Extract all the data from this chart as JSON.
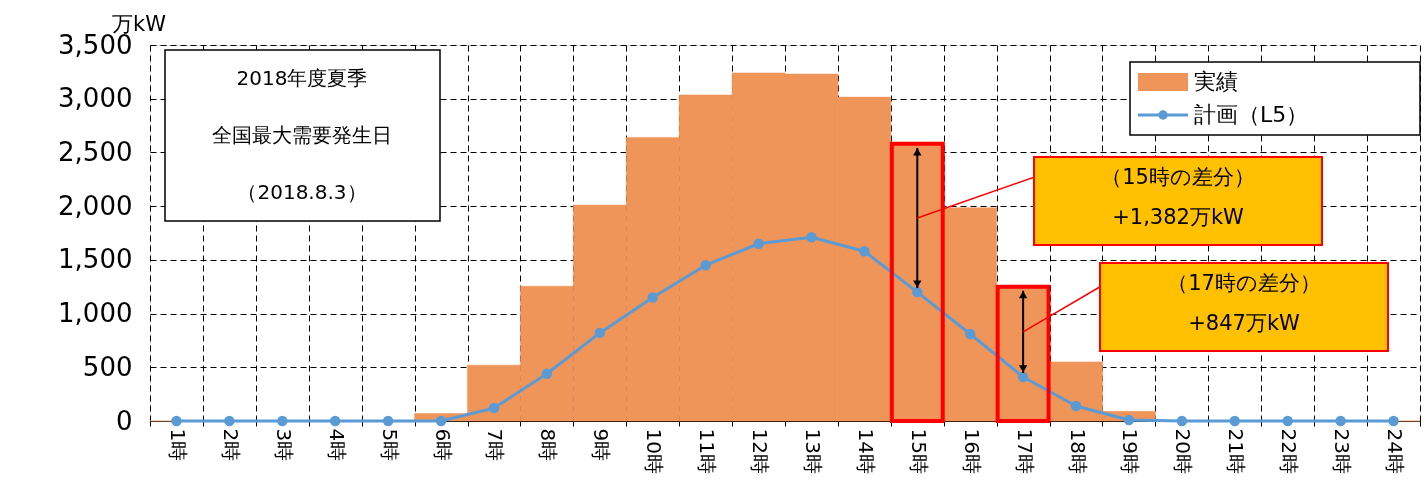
{
  "chart_data": {
    "type": "bar",
    "ylabel": "万kW",
    "categories": [
      "1時",
      "2時",
      "3時",
      "4時",
      "5時",
      "6時",
      "7時",
      "8時",
      "9時",
      "10時",
      "11時",
      "12時",
      "13時",
      "14時",
      "15時",
      "16時",
      "17時",
      "18時",
      "19時",
      "20時",
      "21時",
      "22時",
      "23時",
      "24時"
    ],
    "series": [
      {
        "name": "実績",
        "color": "#f0955a",
        "values": [
          0,
          0,
          0,
          0,
          0,
          70,
          520,
          1255,
          2010,
          2640,
          3035,
          3240,
          3230,
          3015,
          2580,
          1985,
          1250,
          550,
          90,
          0,
          0,
          0,
          0,
          0
        ]
      },
      {
        "name": "計画（L5）",
        "type": "line",
        "color": "#5b9bd5",
        "values": [
          0,
          0,
          0,
          0,
          0,
          0,
          120,
          440,
          820,
          1150,
          1450,
          1650,
          1710,
          1580,
          1200,
          810,
          410,
          140,
          10,
          0,
          0,
          0,
          0,
          0
        ]
      }
    ],
    "ylim": [
      0,
      3500
    ],
    "yticks": [
      0,
      {
        "value": 500,
        "label": "500"
      },
      {
        "value": 1000,
        "label": "1,000"
      },
      {
        "value": 1500,
        "label": "1,500"
      },
      {
        "value": 2000,
        "label": "2,000"
      },
      {
        "value": 2500,
        "label": "2,500"
      },
      {
        "value": 3000,
        "label": "3,000"
      },
      {
        "value": 3500,
        "label": "3,500"
      }
    ],
    "grid": true,
    "legend": "top right",
    "marker": "circle",
    "annotations": [
      "2018年度夏季",
      "全国最大需要発生日",
      "（2018.8.3）",
      "（15時の差分）\n+1,382万kW",
      "（17時の差分）\n+847万kW"
    ]
  }
}
